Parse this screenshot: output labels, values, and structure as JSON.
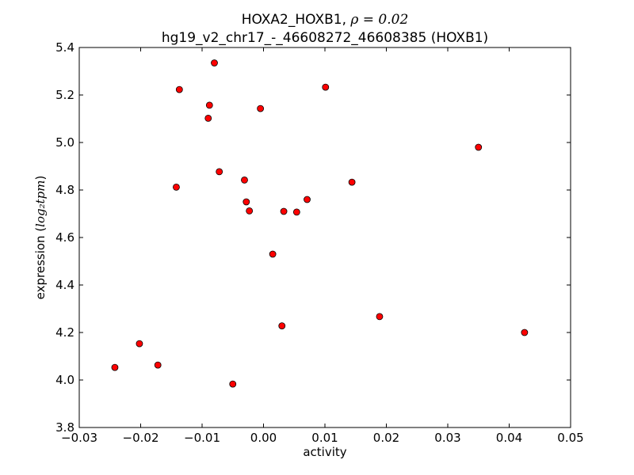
{
  "chart_data": {
    "type": "scatter",
    "title_line1_prefix": "HOXA2_HOXB1, ",
    "title_line1_math": "ρ = 0.02",
    "title_line2": "hg19_v2_chr17_-_46608272_46608385 (HOXB1)",
    "xlabel": "activity",
    "ylabel_prefix": "expression (",
    "ylabel_math": "log₂tpm",
    "ylabel_suffix": ")",
    "xlim": [
      -0.03,
      0.05
    ],
    "ylim": [
      3.8,
      5.4
    ],
    "xticks": [
      -0.03,
      -0.02,
      -0.01,
      0.0,
      0.01,
      0.02,
      0.03,
      0.04,
      0.05
    ],
    "xtick_labels": [
      "−0.03",
      "−0.02",
      "−0.01",
      "0.00",
      "0.01",
      "0.02",
      "0.03",
      "0.04",
      "0.05"
    ],
    "yticks": [
      3.8,
      4.0,
      4.2,
      4.4,
      4.6,
      4.8,
      5.0,
      5.2,
      5.4
    ],
    "ytick_labels": [
      "3.8",
      "4.0",
      "4.2",
      "4.4",
      "4.6",
      "4.8",
      "5.0",
      "5.2",
      "5.4"
    ],
    "grid": false,
    "marker_color": "#ff0000",
    "marker_edge": "#000000",
    "points": [
      {
        "x": -0.0242,
        "y": 4.053
      },
      {
        "x": -0.0202,
        "y": 4.153
      },
      {
        "x": -0.0172,
        "y": 4.063
      },
      {
        "x": -0.0142,
        "y": 4.812
      },
      {
        "x": -0.0137,
        "y": 5.223
      },
      {
        "x": -0.009,
        "y": 5.102
      },
      {
        "x": -0.0088,
        "y": 5.157
      },
      {
        "x": -0.008,
        "y": 5.335
      },
      {
        "x": -0.0072,
        "y": 4.877
      },
      {
        "x": -0.005,
        "y": 3.983
      },
      {
        "x": -0.0031,
        "y": 4.842
      },
      {
        "x": -0.0028,
        "y": 4.75
      },
      {
        "x": -0.0023,
        "y": 4.712
      },
      {
        "x": -0.0005,
        "y": 5.143
      },
      {
        "x": 0.0015,
        "y": 4.53
      },
      {
        "x": 0.003,
        "y": 4.228
      },
      {
        "x": 0.0033,
        "y": 4.71
      },
      {
        "x": 0.0054,
        "y": 4.707
      },
      {
        "x": 0.0071,
        "y": 4.76
      },
      {
        "x": 0.0101,
        "y": 5.233
      },
      {
        "x": 0.0144,
        "y": 4.833
      },
      {
        "x": 0.0189,
        "y": 4.267
      },
      {
        "x": 0.035,
        "y": 4.98
      },
      {
        "x": 0.0425,
        "y": 4.2
      }
    ]
  }
}
